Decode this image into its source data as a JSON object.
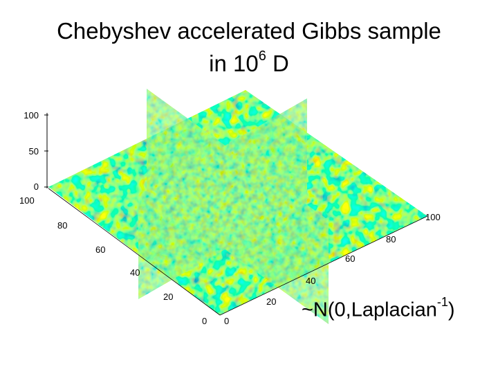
{
  "chart_data": {
    "type": "surface",
    "title_line1": "Chebyshev accelerated Gibbs sample",
    "title_line2_prefix": "in 10",
    "title_line2_superscript": "6",
    "title_line2_suffix": " D",
    "annotation_prefix": "~N(0,Laplacian",
    "annotation_superscript": "-1",
    "annotation_suffix": ")",
    "x_ticks": [
      "0",
      "20",
      "40",
      "60",
      "80",
      "100"
    ],
    "y_ticks": [
      "0",
      "20",
      "40",
      "60",
      "80",
      "100"
    ],
    "z_ticks": [
      "0",
      "50",
      "100"
    ],
    "xlim": [
      0,
      100
    ],
    "ylim": [
      0,
      100
    ],
    "zlim": [
      0,
      100
    ],
    "grid": false,
    "colormap": [
      "#000080",
      "#1e90ff",
      "#00ced1",
      "#7fffd4",
      "#adff2f",
      "#ffd700",
      "#ff8c00",
      "#b22222"
    ]
  }
}
